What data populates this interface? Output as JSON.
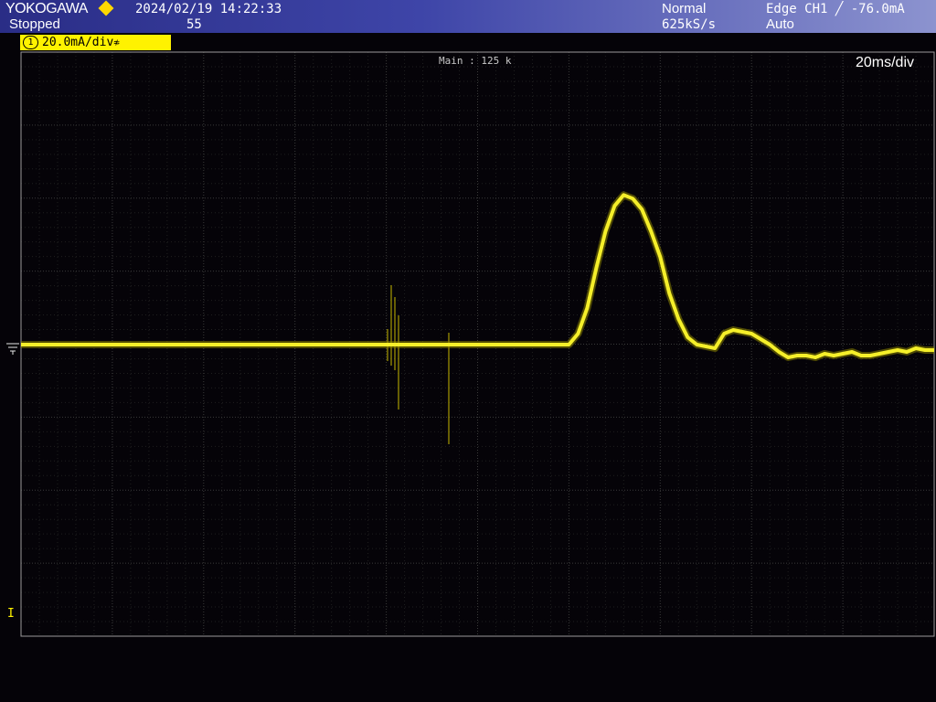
{
  "header": {
    "brand": "YOKOGAWA",
    "run_state": "Stopped",
    "datetime": "2024/02/19 14:22:33",
    "record_length": "55",
    "acquisition_mode": "Normal",
    "sample_rate": "625kS/s",
    "trigger_info": "Edge CH1 ╱ -76.0mA",
    "trigger_mode": "Auto"
  },
  "channel": {
    "number": "1",
    "scale": "20.0mA/div",
    "coupling_symbol": "≉",
    "color": "#fff200"
  },
  "display": {
    "zoom_label": "Main : 125 k",
    "timebase": "20ms/div",
    "trigger_marker": "I"
  },
  "colors": {
    "trace": "#f5ef2a",
    "grid": "#3a3a3a",
    "grid_border": "#9a9a9a",
    "background": "#050308"
  },
  "chart_data": {
    "type": "line",
    "title": "",
    "xlabel": "",
    "ylabel": "",
    "x_unit": "ms",
    "y_unit": "mA",
    "xlim": [
      -100,
      100
    ],
    "ylim": [
      -80,
      80
    ],
    "grid": true,
    "series": [
      {
        "name": "",
        "x": [
          -100,
          -70,
          -40,
          -10,
          20,
          22,
          24,
          26,
          28,
          30,
          32,
          34,
          36,
          38,
          40,
          42,
          44,
          46,
          48,
          50,
          52,
          54,
          56,
          58,
          60,
          62,
          64,
          66,
          68,
          70,
          72,
          74,
          76,
          78,
          80,
          82,
          84,
          86,
          88,
          90,
          92,
          94,
          96,
          98,
          100
        ],
        "values": [
          0.0,
          0.0,
          0.0,
          0.0,
          0.0,
          3.0,
          10.0,
          21.0,
          31.0,
          38.0,
          41.0,
          40.0,
          37.0,
          31.0,
          24.0,
          14.0,
          7.0,
          2.0,
          0.0,
          -0.5,
          -1.0,
          3.0,
          4.0,
          3.5,
          3.0,
          1.5,
          0.0,
          -2.0,
          -3.5,
          -3.0,
          -3.0,
          -3.5,
          -2.5,
          -3.0,
          -2.5,
          -2.0,
          -3.0,
          -3.0,
          -2.5,
          -2.0,
          -1.5,
          -2.0,
          -1.0,
          -1.5,
          -1.5
        ]
      }
    ]
  }
}
